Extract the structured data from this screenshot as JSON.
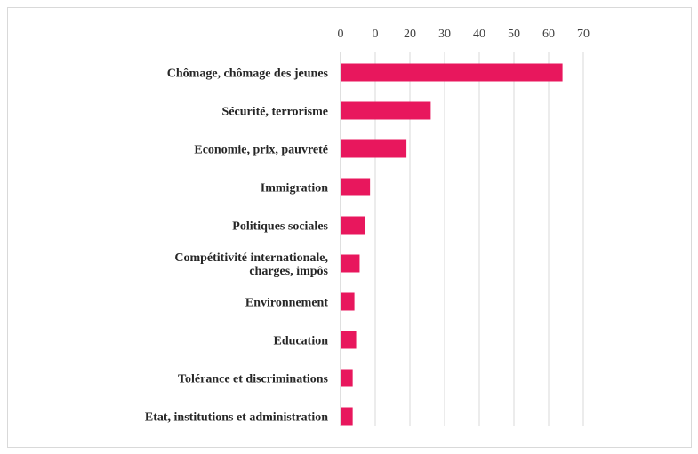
{
  "chart_data": {
    "type": "bar",
    "orientation": "horizontal",
    "title": "",
    "xlabel": "",
    "ylabel": "",
    "x_ticks": [
      "0",
      "0",
      "20",
      "30",
      "40",
      "50",
      "60",
      "70"
    ],
    "xlim": [
      0,
      70
    ],
    "grid": true,
    "legend": "none",
    "bar_color": "#e8175d",
    "categories": [
      "Chômage, chômage des jeunes",
      "Sécurité, terrorisme",
      "Economie, prix, pauvreté",
      "Immigration",
      "Politiques sociales",
      [
        "Compétitivité internationale,",
        "charges, impôs"
      ],
      "Environnement",
      "Education",
      "Tolérance et discriminations",
      "Etat, institutions et administration"
    ],
    "values": [
      64,
      26,
      19,
      8.5,
      7,
      5.5,
      4,
      4.5,
      3.5,
      3.5
    ]
  }
}
